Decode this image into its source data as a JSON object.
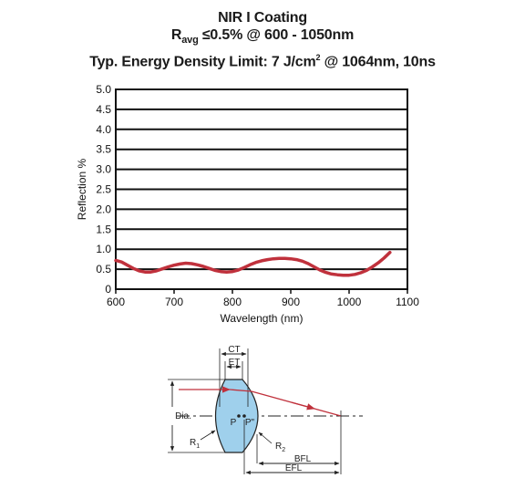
{
  "title": {
    "line1": "NIR I Coating",
    "line2_prefix": "R",
    "line2_sub": "avg",
    "line2_rest": " ≤0.5% @ 600 - 1050nm",
    "line3_prefix": "Typ. Energy Density Limit: 7 J/cm",
    "line3_sup": "2",
    "line3_rest": " @ 1064nm, 10ns"
  },
  "chart_data": {
    "type": "line",
    "xlabel": "Wavelength (nm)",
    "ylabel": "Reflection %",
    "xlim": [
      600,
      1100
    ],
    "ylim": [
      0,
      5.0
    ],
    "x_ticks": [
      "600",
      "700",
      "800",
      "900",
      "1000",
      "1100"
    ],
    "y_ticks": [
      "0",
      "0.5",
      "1.0",
      "1.5",
      "2.0",
      "2.5",
      "3.0",
      "3.5",
      "4.0",
      "4.5",
      "5.0"
    ],
    "grid": "horizontal",
    "series": [
      {
        "color": "#c0313c",
        "x": [
          600,
          610,
          620,
          630,
          640,
          650,
          660,
          670,
          680,
          690,
          700,
          710,
          720,
          730,
          740,
          750,
          760,
          770,
          780,
          790,
          800,
          810,
          820,
          830,
          840,
          850,
          860,
          870,
          880,
          890,
          900,
          910,
          920,
          930,
          940,
          950,
          960,
          970,
          980,
          990,
          1000,
          1010,
          1020,
          1030,
          1040,
          1050,
          1060,
          1070
        ],
        "y": [
          0.72,
          0.68,
          0.6,
          0.52,
          0.46,
          0.43,
          0.43,
          0.46,
          0.51,
          0.56,
          0.6,
          0.63,
          0.65,
          0.64,
          0.61,
          0.57,
          0.52,
          0.47,
          0.44,
          0.43,
          0.44,
          0.48,
          0.54,
          0.61,
          0.67,
          0.71,
          0.74,
          0.76,
          0.77,
          0.77,
          0.76,
          0.74,
          0.7,
          0.64,
          0.56,
          0.48,
          0.42,
          0.38,
          0.36,
          0.35,
          0.35,
          0.37,
          0.41,
          0.47,
          0.56,
          0.66,
          0.78,
          0.92
        ]
      }
    ]
  },
  "diagram": {
    "labels": {
      "ct": "CT",
      "et": "ET",
      "dia": "Dia.",
      "p": "P",
      "p_prime": "P\"",
      "r1": "R",
      "r1_sub": "1",
      "r2": "R",
      "r2_sub": "2",
      "bfl": "BFL",
      "efl": "EFL"
    },
    "lens_fill": "#9fd0ec",
    "ray_color": "#c0313c"
  }
}
